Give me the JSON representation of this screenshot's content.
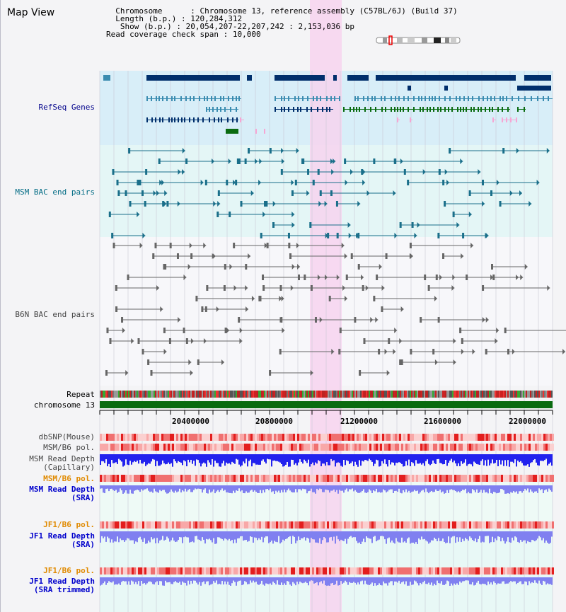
{
  "title": "Map View",
  "info": {
    "chromosome_label": "Chromosome",
    "chromosome_value": "Chromosome 13, reference assembly (C57BL/6J) (Build 37)",
    "length_label": "Length (b.p.)",
    "length_value": "120,284,312",
    "show_label": "Show (b.p.)",
    "show_value": "20,054,207-22,207,242 : 2,153,036 bp",
    "coverage_label": "Read coverage check span",
    "coverage_value": "10,000"
  },
  "tracks": {
    "refseq": "RefSeq Genes",
    "msm_bac": "MSM BAC end pairs",
    "b6n_bac": "B6N BAC end pairs",
    "repeat": "Repeat",
    "chromosome": "chromosome 13",
    "dbsnp": "dbSNP(Mouse)",
    "msm_b6_pol": "MSM/B6 pol.",
    "msm_depth_cap_1": "MSM Read Depth",
    "msm_depth_cap_2": "(Capillary)",
    "msm_b6_pol_2": "MSM/B6 pol.",
    "msm_depth_sra_1": "MSM Read Depth",
    "msm_depth_sra_2": "(SRA)",
    "jf1_b6_pol": "JF1/B6 pol.",
    "jf1_depth_sra_1": "JF1 Read Depth",
    "jf1_depth_sra_2": "(SRA)",
    "jf1_b6_pol_2": "JF1/B6 pol.",
    "jf1_depth_trim_1": "JF1 Read Depth",
    "jf1_depth_trim_2": "(SRA trimmed)"
  },
  "axis": {
    "ticks": [
      "20400000",
      "20800000",
      "21200000",
      "21600000",
      "22000000"
    ]
  },
  "colors": {
    "refseq_bg": "#d8eef8",
    "msm_bg": "#e4f6f6",
    "highlight": "#f7d4ef",
    "gene_dark": "#002f6c",
    "gene_teal": "#3a8cb0",
    "gene_green": "#0a6b10",
    "gene_pink": "#f6a6d4",
    "msm_line": "#1a6f8a",
    "b6n_line": "#666666",
    "chrom_green": "#0a6b10",
    "snp_red": "#e8302a",
    "depth_blue": "#2222ee",
    "depth_light": "#8080f0"
  }
}
